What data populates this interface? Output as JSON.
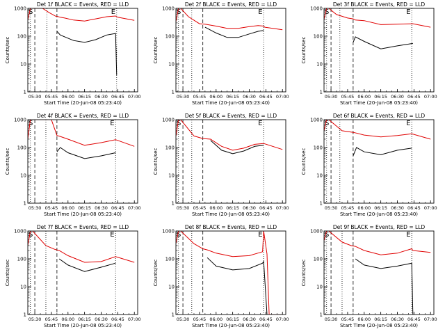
{
  "figure": {
    "xlabel": "Start Time (20-Jun-08 05:23:40)",
    "ylabel": "Counts/sec",
    "y_ticks": [
      "1000",
      "100",
      "10",
      "1"
    ],
    "x_ticks_a": [
      "05:30",
      "05:45",
      "06:00",
      "06:15",
      "06:30",
      "06:45",
      "07:00"
    ],
    "x_ticks_b": [
      "05:30",
      "05:45",
      "06:00",
      "06:15",
      "06:30",
      "06:45",
      "07:00"
    ],
    "colors": {
      "events": "#000000",
      "lld": "#e00000"
    }
  },
  "chart_data": [
    {
      "type": "line",
      "title": "Det 1f BLACK = Events, RED = LLD",
      "ylim": [
        1,
        1000
      ],
      "yscale": "log",
      "xlim": [
        "05:23:40",
        "07:03:00"
      ],
      "marker_S": "S",
      "marker_E": "E",
      "x": [
        "05:23:40",
        "05:26",
        "05:28",
        "05:31",
        "05:37",
        "05:43",
        "05:49",
        "05:50",
        "05:53",
        "05:57",
        "06:05",
        "06:15",
        "06:25",
        "06:35",
        "06:43",
        "06:44",
        "06:45",
        "07:00"
      ],
      "series": [
        {
          "name": "Events",
          "values": [
            null,
            null,
            null,
            null,
            null,
            null,
            null,
            150,
            110,
            95,
            70,
            60,
            75,
            110,
            125,
            4,
            null,
            null
          ]
        },
        {
          "name": "LLD",
          "values": [
            380,
            1000,
            1000,
            1000,
            1000,
            700,
            520,
            520,
            480,
            450,
            380,
            350,
            420,
            500,
            530,
            500,
            480,
            370
          ]
        }
      ],
      "verticals_dotted": [
        "05:26",
        "05:41",
        "06:44"
      ],
      "verticals_dashed": [
        "05:30",
        "05:50"
      ]
    },
    {
      "type": "line",
      "title": "Det 2f BLACK = Events, RED = LLD",
      "ylim": [
        1,
        1000
      ],
      "yscale": "log",
      "xlim": [
        "05:23:40",
        "07:03:00"
      ],
      "marker_S": "S",
      "marker_E": "E",
      "x": [
        "05:23:40",
        "05:26",
        "05:28",
        "05:35",
        "05:45",
        "05:50",
        "06:00",
        "06:10",
        "06:20",
        "06:30",
        "06:38",
        "06:43",
        "06:44",
        "07:00"
      ],
      "series": [
        {
          "name": "Events",
          "values": [
            null,
            null,
            null,
            null,
            null,
            210,
            130,
            90,
            90,
            120,
            150,
            160,
            null,
            null
          ]
        },
        {
          "name": "LLD",
          "values": [
            330,
            1000,
            1000,
            500,
            280,
            270,
            230,
            190,
            190,
            220,
            240,
            230,
            210,
            170
          ]
        }
      ],
      "verticals_dotted": [
        "05:26",
        "05:38",
        "06:43"
      ],
      "verticals_dashed": [
        "05:30",
        "05:48"
      ]
    },
    {
      "type": "line",
      "title": "Det 3f BLACK = Events, RED = LLD",
      "ylim": [
        1,
        1000
      ],
      "yscale": "log",
      "xlim": [
        "05:23:40",
        "07:03:00"
      ],
      "marker_S": "S",
      "marker_E": "E",
      "x": [
        "05:23:40",
        "05:26",
        "05:28",
        "05:35",
        "05:45",
        "05:50",
        "05:52",
        "06:00",
        "06:15",
        "06:30",
        "06:44",
        "07:00"
      ],
      "series": [
        {
          "name": "Events",
          "values": [
            null,
            null,
            null,
            null,
            null,
            60,
            95,
            65,
            35,
            45,
            55,
            null
          ]
        },
        {
          "name": "LLD",
          "values": [
            400,
            1000,
            1000,
            600,
            450,
            420,
            380,
            360,
            260,
            270,
            280,
            210
          ]
        }
      ],
      "verticals_dotted": [
        "05:26",
        "05:38",
        "06:43"
      ],
      "verticals_dashed": [
        "05:30",
        "05:50"
      ]
    },
    {
      "type": "line",
      "title": "Det 4f BLACK = Events, RED = LLD",
      "ylim": [
        1,
        1000
      ],
      "yscale": "log",
      "xlim": [
        "05:23:40",
        "07:03:00"
      ],
      "marker_S": "S",
      "marker_E": "E",
      "x": [
        "05:23:40",
        "05:26",
        "05:28",
        "05:45",
        "05:50",
        "05:53",
        "06:00",
        "06:15",
        "06:30",
        "06:43",
        "06:45",
        "07:00"
      ],
      "series": [
        {
          "name": "Events",
          "values": [
            null,
            null,
            null,
            null,
            70,
            100,
            65,
            40,
            50,
            65,
            null,
            null
          ]
        },
        {
          "name": "LLD",
          "values": [
            200,
            1000,
            1000,
            1000,
            270,
            250,
            200,
            120,
            150,
            190,
            180,
            110
          ]
        }
      ],
      "verticals_dotted": [
        "05:26",
        "05:40",
        "06:43"
      ],
      "verticals_dashed": [
        "05:30",
        "05:50"
      ]
    },
    {
      "type": "line",
      "title": "Det 5f BLACK = Events, RED = LLD",
      "ylim": [
        1,
        1000
      ],
      "yscale": "log",
      "xlim": [
        "05:23:40",
        "07:03:00"
      ],
      "marker_S": "S",
      "marker_E": "E",
      "x": [
        "05:23:40",
        "05:26",
        "05:28",
        "05:40",
        "05:48",
        "05:55",
        "06:05",
        "06:15",
        "06:25",
        "06:35",
        "06:43",
        "07:00"
      ],
      "series": [
        {
          "name": "Events",
          "values": [
            null,
            null,
            null,
            null,
            null,
            180,
            80,
            60,
            75,
            110,
            120,
            null
          ]
        },
        {
          "name": "LLD",
          "values": [
            250,
            1000,
            1000,
            260,
            210,
            200,
            110,
            80,
            95,
            130,
            140,
            85
          ]
        }
      ],
      "verticals_dotted": [
        "05:26",
        "05:38",
        "06:43"
      ],
      "verticals_dashed": [
        "05:30",
        "05:48"
      ]
    },
    {
      "type": "line",
      "title": "Det 6f BLACK = Events, RED = LLD",
      "ylim": [
        1,
        1000
      ],
      "yscale": "log",
      "xlim": [
        "05:23:40",
        "07:03:00"
      ],
      "marker_S": "S",
      "marker_E": "E",
      "x": [
        "05:23:40",
        "05:26",
        "05:28",
        "05:40",
        "05:50",
        "05:53",
        "06:00",
        "06:15",
        "06:30",
        "06:43",
        "07:00"
      ],
      "series": [
        {
          "name": "Events",
          "values": [
            null,
            null,
            null,
            null,
            50,
            100,
            70,
            55,
            80,
            95,
            null
          ]
        },
        {
          "name": "LLD",
          "values": [
            400,
            1000,
            1000,
            400,
            350,
            330,
            280,
            240,
            270,
            310,
            200
          ]
        }
      ],
      "verticals_dotted": [
        "05:26",
        "05:38",
        "06:43"
      ],
      "verticals_dashed": [
        "05:30",
        "05:50"
      ]
    },
    {
      "type": "line",
      "title": "Det 7f BLACK = Events, RED = LLD",
      "ylim": [
        1,
        1000
      ],
      "yscale": "log",
      "xlim": [
        "05:23:40",
        "07:03:00"
      ],
      "marker_S": "S",
      "marker_E": "E",
      "x": [
        "05:23:40",
        "05:26",
        "05:28",
        "05:40",
        "05:48",
        "05:52",
        "06:00",
        "06:15",
        "06:30",
        "06:43",
        "07:00"
      ],
      "series": [
        {
          "name": "Events",
          "values": [
            null,
            null,
            null,
            null,
            null,
            100,
            60,
            35,
            50,
            70,
            null
          ]
        },
        {
          "name": "LLD",
          "values": [
            300,
            1000,
            1000,
            300,
            220,
            200,
            130,
            75,
            80,
            120,
            75
          ]
        }
      ],
      "verticals_dotted": [
        "05:26",
        "05:40",
        "06:43"
      ],
      "verticals_dashed": [
        "05:30",
        "05:50"
      ]
    },
    {
      "type": "line",
      "title": "Det 8f BLACK = Events, RED = LLD",
      "ylim": [
        1,
        1000
      ],
      "yscale": "log",
      "xlim": [
        "05:23:40",
        "07:03:00"
      ],
      "marker_S": "S",
      "marker_E": "E",
      "x": [
        "05:23:40",
        "05:26",
        "05:28",
        "05:40",
        "05:48",
        "05:52",
        "06:00",
        "06:15",
        "06:30",
        "06:42",
        "06:43",
        "06:46",
        "06:48",
        "07:00"
      ],
      "series": [
        {
          "name": "Events",
          "values": [
            null,
            null,
            null,
            null,
            null,
            110,
            55,
            40,
            45,
            70,
            80,
            1,
            null,
            null
          ]
        },
        {
          "name": "LLD",
          "values": [
            350,
            1000,
            1000,
            350,
            230,
            210,
            160,
            120,
            130,
            180,
            1000,
            150,
            1,
            1
          ]
        }
      ],
      "verticals_dotted": [
        "05:26",
        "05:38",
        "06:43"
      ],
      "verticals_dashed": [
        "05:30",
        "05:48"
      ]
    },
    {
      "type": "line",
      "title": "Det 9f BLACK = Events, RED = LLD",
      "ylim": [
        1,
        1000
      ],
      "yscale": "log",
      "xlim": [
        "05:23:40",
        "07:03:00"
      ],
      "marker_S": "S",
      "marker_E": "E",
      "x": [
        "05:23:40",
        "05:26",
        "05:28",
        "05:40",
        "05:48",
        "05:52",
        "06:00",
        "06:15",
        "06:30",
        "06:43",
        "06:44",
        "07:00"
      ],
      "series": [
        {
          "name": "Events",
          "values": [
            null,
            null,
            null,
            null,
            null,
            100,
            60,
            45,
            55,
            70,
            1,
            null
          ]
        },
        {
          "name": "LLD",
          "values": [
            450,
            1000,
            1000,
            400,
            300,
            280,
            200,
            140,
            160,
            230,
            200,
            170
          ]
        }
      ],
      "verticals_dotted": [
        "05:26",
        "05:40",
        "06:43"
      ],
      "verticals_dashed": [
        "05:30",
        "05:50"
      ]
    }
  ]
}
